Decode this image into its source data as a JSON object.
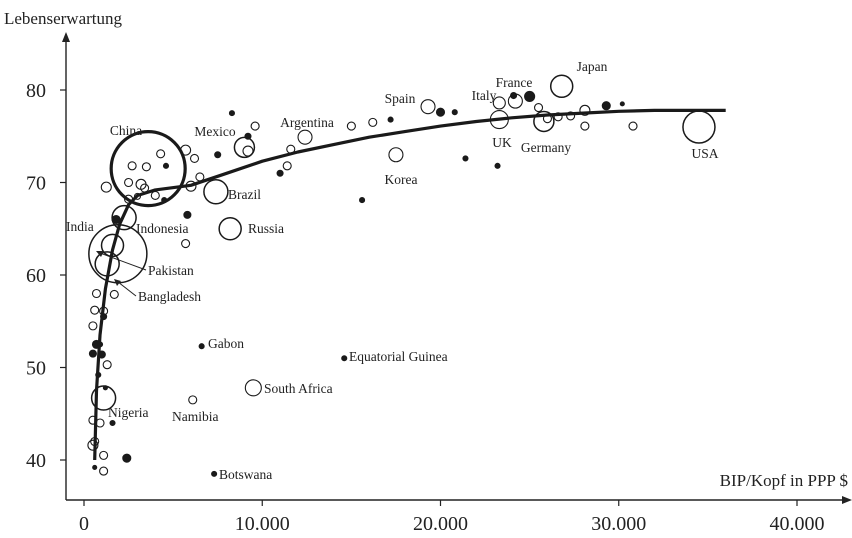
{
  "chart_data": {
    "type": "scatter",
    "title": "",
    "xlabel": "BIP/Kopf in PPP $",
    "ylabel": "Lebenserwartung",
    "xlim": [
      -1000,
      42000
    ],
    "ylim": [
      36,
      88
    ],
    "grid": false,
    "x_ticks": [
      0,
      10000,
      20000,
      30000,
      40000
    ],
    "x_tick_labels": [
      "0",
      "10.000",
      "20.000",
      "30.000",
      "40.000"
    ],
    "y_ticks": [
      40,
      50,
      60,
      70,
      80
    ],
    "y_tick_labels": [
      "40",
      "50",
      "60",
      "70",
      "80"
    ],
    "bubble_scale_note": "bubble radius proportional to population",
    "labeled_countries": [
      {
        "name": "USA",
        "x": 34500,
        "y": 76.0,
        "r": 16,
        "style": "open",
        "label": "USA"
      },
      {
        "name": "Japan",
        "x": 26800,
        "y": 80.4,
        "r": 11,
        "style": "open",
        "label": "Japan"
      },
      {
        "name": "France",
        "x": 24200,
        "y": 78.8,
        "r": 7,
        "style": "open",
        "label": "France"
      },
      {
        "name": "Italy",
        "x": 23300,
        "y": 78.6,
        "r": 6,
        "style": "open",
        "label": "Italy"
      },
      {
        "name": "Spain",
        "x": 19300,
        "y": 78.2,
        "r": 7,
        "style": "open",
        "label": "Spain"
      },
      {
        "name": "UK",
        "x": 23300,
        "y": 76.8,
        "r": 9,
        "style": "open",
        "label": "UK"
      },
      {
        "name": "Germany",
        "x": 25800,
        "y": 76.6,
        "r": 10,
        "style": "open",
        "label": "Germany"
      },
      {
        "name": "Korea",
        "x": 17500,
        "y": 73.0,
        "r": 7,
        "style": "open",
        "label": "Korea"
      },
      {
        "name": "Argentina",
        "x": 12400,
        "y": 74.9,
        "r": 7,
        "style": "open",
        "label": "Argentina"
      },
      {
        "name": "Mexico",
        "x": 9000,
        "y": 73.8,
        "r": 10,
        "style": "open",
        "label": "Mexico"
      },
      {
        "name": "China",
        "x": 3600,
        "y": 71.5,
        "r": 37,
        "style": "open-thick",
        "label": "China"
      },
      {
        "name": "Brazil",
        "x": 7400,
        "y": 69.0,
        "r": 12,
        "style": "open",
        "label": "Brazil"
      },
      {
        "name": "Russia",
        "x": 8200,
        "y": 65.0,
        "r": 11,
        "style": "open",
        "label": "Russia"
      },
      {
        "name": "Indonesia",
        "x": 2250,
        "y": 66.2,
        "r": 12,
        "style": "open",
        "label": "Indonesia"
      },
      {
        "name": "India",
        "x": 1900,
        "y": 62.3,
        "r": 29,
        "style": "open",
        "label": "India"
      },
      {
        "name": "Pakistan",
        "x": 1600,
        "y": 63.2,
        "r": 11,
        "style": "open",
        "label": "Pakistan"
      },
      {
        "name": "Bangladesh",
        "x": 1300,
        "y": 61.2,
        "r": 12,
        "style": "open",
        "label": "Bangladesh"
      },
      {
        "name": "Nigeria",
        "x": 1100,
        "y": 46.7,
        "r": 12,
        "style": "open",
        "label": "Nigeria"
      },
      {
        "name": "Gabon",
        "x": 6600,
        "y": 52.3,
        "r": 2.5,
        "style": "filled",
        "label": "Gabon"
      },
      {
        "name": "Equatorial Guinea",
        "x": 14600,
        "y": 51.0,
        "r": 2.5,
        "style": "filled",
        "label": "Equatorial Guinea"
      },
      {
        "name": "Namibia",
        "x": 6100,
        "y": 46.5,
        "r": 4,
        "style": "open",
        "label": "Namibia"
      },
      {
        "name": "South Africa",
        "x": 9500,
        "y": 47.8,
        "r": 8,
        "style": "open",
        "label": "South Africa"
      },
      {
        "name": "Botswana",
        "x": 7300,
        "y": 38.5,
        "r": 2.5,
        "style": "filled",
        "label": "Botswana"
      }
    ],
    "other_countries": [
      {
        "x": 5700,
        "y": 73.5,
        "r": 5,
        "style": "open"
      },
      {
        "x": 6200,
        "y": 72.6,
        "r": 4,
        "style": "open"
      },
      {
        "x": 7500,
        "y": 73.0,
        "r": 3,
        "style": "filled"
      },
      {
        "x": 8300,
        "y": 77.5,
        "r": 2.5,
        "style": "filled"
      },
      {
        "x": 9600,
        "y": 76.1,
        "r": 4,
        "style": "open"
      },
      {
        "x": 9200,
        "y": 75.0,
        "r": 3,
        "style": "filled"
      },
      {
        "x": 9200,
        "y": 73.4,
        "r": 5,
        "style": "open"
      },
      {
        "x": 11000,
        "y": 71.0,
        "r": 3,
        "style": "filled"
      },
      {
        "x": 11400,
        "y": 71.8,
        "r": 4,
        "style": "open"
      },
      {
        "x": 11600,
        "y": 73.6,
        "r": 4,
        "style": "open"
      },
      {
        "x": 15000,
        "y": 76.1,
        "r": 4,
        "style": "open"
      },
      {
        "x": 16200,
        "y": 76.5,
        "r": 4,
        "style": "open"
      },
      {
        "x": 17200,
        "y": 76.8,
        "r": 2.5,
        "style": "filled"
      },
      {
        "x": 15600,
        "y": 68.1,
        "r": 2.5,
        "style": "filled"
      },
      {
        "x": 20000,
        "y": 77.6,
        "r": 4,
        "style": "filled"
      },
      {
        "x": 20800,
        "y": 77.6,
        "r": 2.5,
        "style": "filled"
      },
      {
        "x": 21400,
        "y": 72.6,
        "r": 2.5,
        "style": "filled"
      },
      {
        "x": 23200,
        "y": 71.8,
        "r": 2.5,
        "style": "filled"
      },
      {
        "x": 24100,
        "y": 79.4,
        "r": 3,
        "style": "filled"
      },
      {
        "x": 25000,
        "y": 79.3,
        "r": 5,
        "style": "filled"
      },
      {
        "x": 25500,
        "y": 78.1,
        "r": 4,
        "style": "open"
      },
      {
        "x": 26000,
        "y": 76.9,
        "r": 4,
        "style": "open"
      },
      {
        "x": 26600,
        "y": 77.1,
        "r": 4,
        "style": "open"
      },
      {
        "x": 27300,
        "y": 77.2,
        "r": 4,
        "style": "open"
      },
      {
        "x": 28100,
        "y": 77.8,
        "r": 5,
        "style": "open"
      },
      {
        "x": 28100,
        "y": 76.1,
        "r": 4,
        "style": "open"
      },
      {
        "x": 29300,
        "y": 78.3,
        "r": 4,
        "style": "filled"
      },
      {
        "x": 30200,
        "y": 78.5,
        "r": 2,
        "style": "filled"
      },
      {
        "x": 30800,
        "y": 76.1,
        "r": 4,
        "style": "open"
      },
      {
        "x": 1250,
        "y": 69.5,
        "r": 5,
        "style": "open"
      },
      {
        "x": 2700,
        "y": 71.8,
        "r": 4,
        "style": "open"
      },
      {
        "x": 3500,
        "y": 71.7,
        "r": 4,
        "style": "open"
      },
      {
        "x": 4300,
        "y": 73.1,
        "r": 4,
        "style": "open"
      },
      {
        "x": 4600,
        "y": 71.8,
        "r": 2.5,
        "style": "filled"
      },
      {
        "x": 2500,
        "y": 70.0,
        "r": 4,
        "style": "open"
      },
      {
        "x": 3200,
        "y": 69.8,
        "r": 5,
        "style": "open"
      },
      {
        "x": 3400,
        "y": 69.4,
        "r": 4,
        "style": "open"
      },
      {
        "x": 4000,
        "y": 68.6,
        "r": 4,
        "style": "open"
      },
      {
        "x": 2500,
        "y": 68.2,
        "r": 4,
        "style": "open"
      },
      {
        "x": 3000,
        "y": 68.5,
        "r": 3,
        "style": "open"
      },
      {
        "x": 4500,
        "y": 68.1,
        "r": 2.5,
        "style": "filled"
      },
      {
        "x": 6000,
        "y": 69.6,
        "r": 5,
        "style": "open"
      },
      {
        "x": 6500,
        "y": 70.6,
        "r": 4,
        "style": "open"
      },
      {
        "x": 5800,
        "y": 66.5,
        "r": 3.5,
        "style": "filled"
      },
      {
        "x": 1800,
        "y": 66.0,
        "r": 4,
        "style": "filled"
      },
      {
        "x": 5700,
        "y": 63.4,
        "r": 4,
        "style": "open"
      },
      {
        "x": 600,
        "y": 56.2,
        "r": 4,
        "style": "open"
      },
      {
        "x": 500,
        "y": 54.5,
        "r": 4,
        "style": "open"
      },
      {
        "x": 1100,
        "y": 56.1,
        "r": 4,
        "style": "open"
      },
      {
        "x": 1100,
        "y": 55.5,
        "r": 3,
        "style": "filled"
      },
      {
        "x": 700,
        "y": 52.5,
        "r": 4,
        "style": "filled"
      },
      {
        "x": 900,
        "y": 52.5,
        "r": 2.5,
        "style": "filled"
      },
      {
        "x": 500,
        "y": 51.5,
        "r": 3.5,
        "style": "filled"
      },
      {
        "x": 1000,
        "y": 51.4,
        "r": 3.5,
        "style": "filled"
      },
      {
        "x": 1300,
        "y": 50.3,
        "r": 4,
        "style": "open"
      },
      {
        "x": 800,
        "y": 49.2,
        "r": 2.5,
        "style": "filled"
      },
      {
        "x": 1200,
        "y": 47.8,
        "r": 2,
        "style": "filled"
      },
      {
        "x": 700,
        "y": 58.0,
        "r": 4,
        "style": "open"
      },
      {
        "x": 1700,
        "y": 57.9,
        "r": 4,
        "style": "open"
      },
      {
        "x": 500,
        "y": 44.3,
        "r": 4,
        "style": "open"
      },
      {
        "x": 900,
        "y": 44.0,
        "r": 4,
        "style": "open"
      },
      {
        "x": 1600,
        "y": 44.0,
        "r": 2.5,
        "style": "filled"
      },
      {
        "x": 600,
        "y": 42.0,
        "r": 4,
        "style": "open"
      },
      {
        "x": 500,
        "y": 41.6,
        "r": 5,
        "style": "open"
      },
      {
        "x": 1100,
        "y": 40.5,
        "r": 4,
        "style": "open"
      },
      {
        "x": 2400,
        "y": 40.2,
        "r": 4,
        "style": "filled"
      },
      {
        "x": 600,
        "y": 39.2,
        "r": 2,
        "style": "filled"
      },
      {
        "x": 1100,
        "y": 38.8,
        "r": 4,
        "style": "open"
      }
    ],
    "trend_line": {
      "x": [
        600,
        700,
        900,
        1200,
        1600,
        2000,
        2500,
        3000,
        4000,
        6000,
        8000,
        10000,
        12000,
        14000,
        16000,
        18000,
        20000,
        22000,
        24000,
        26000,
        28000,
        30000,
        32000,
        34000,
        36000
      ],
      "y": [
        40.0,
        47.5,
        53.5,
        58.5,
        62.7,
        65.5,
        67.6,
        68.6,
        69.2,
        69.7,
        71.0,
        72.3,
        73.3,
        74.1,
        74.9,
        75.5,
        76.1,
        76.6,
        77.0,
        77.3,
        77.5,
        77.7,
        77.8,
        77.8,
        77.8
      ]
    }
  }
}
